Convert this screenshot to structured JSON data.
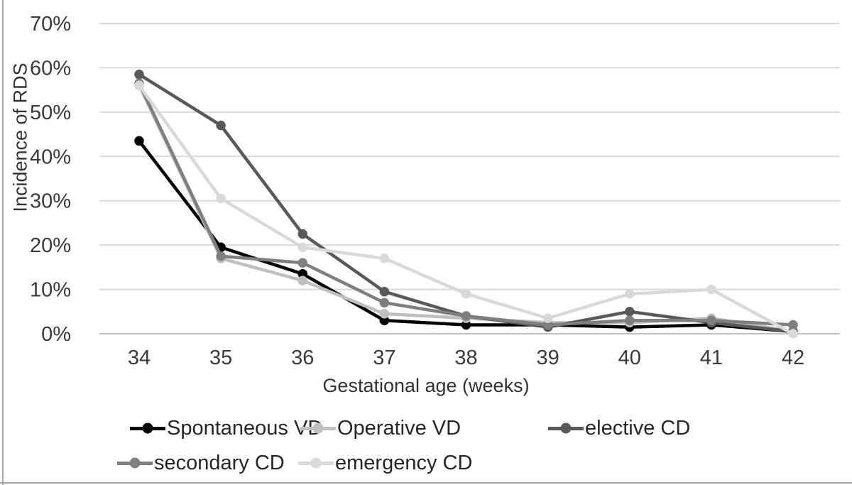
{
  "chart_data": {
    "type": "line",
    "x": [
      34,
      35,
      36,
      37,
      38,
      39,
      40,
      41,
      42
    ],
    "series": [
      {
        "name": "Spontaneous VD",
        "color": "#000000",
        "values": [
          43.5,
          19.5,
          13.5,
          3,
          2,
          2,
          1.5,
          2,
          0.5
        ]
      },
      {
        "name": "Operative VD",
        "color": "#bfbfbf",
        "values": [
          56,
          17,
          12,
          4.5,
          3.5,
          2.5,
          2.5,
          3.5,
          0.5
        ]
      },
      {
        "name": "elective CD",
        "color": "#595959",
        "values": [
          58.5,
          47,
          22.5,
          9.5,
          4,
          1.5,
          5,
          2.5,
          0.5
        ]
      },
      {
        "name": "secondary CD",
        "color": "#7f7f7f",
        "values": [
          56.5,
          17.5,
          16,
          7,
          4,
          2,
          3,
          3,
          2
        ]
      },
      {
        "name": "emergency CD",
        "color": "#d9d9d9",
        "values": [
          56,
          30.5,
          19.5,
          17,
          9,
          3.5,
          9,
          10,
          0
        ]
      }
    ],
    "title": "",
    "xlabel": "Gestational age (weeks)",
    "ylabel": "Incidence of RDS",
    "ylim": [
      0,
      70
    ],
    "ytick_step": 10,
    "ytick_suffix": "%",
    "ytick_labels": [
      "0%",
      "10%",
      "20%",
      "30%",
      "40%",
      "50%",
      "60%",
      "70%"
    ],
    "xtick_labels": [
      "34",
      "35",
      "36",
      "37",
      "38",
      "39",
      "40",
      "41",
      "42"
    ],
    "grid": "horizontal",
    "gridline_color": "#d9d9d9",
    "axis_line_color": "#bfbfbf",
    "tick_label_color": "#3a3a3a",
    "legend_position": "bottom",
    "legend_rows": [
      [
        0,
        1,
        2
      ],
      [
        3,
        4
      ]
    ]
  }
}
